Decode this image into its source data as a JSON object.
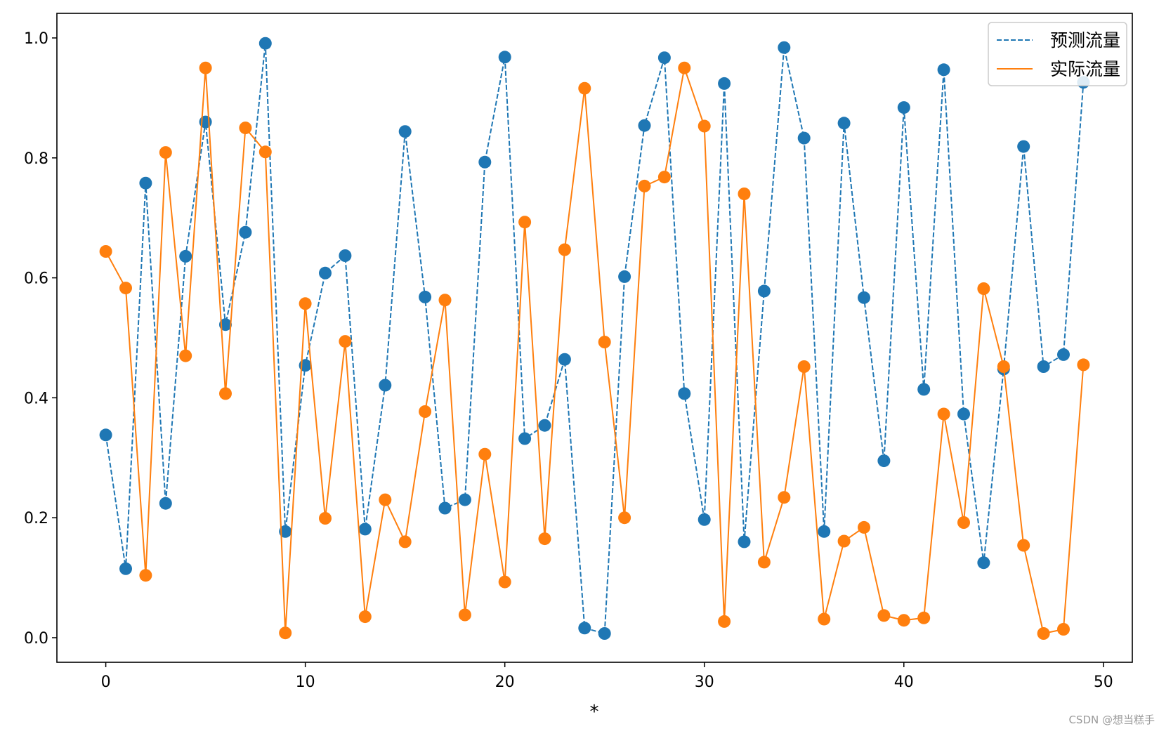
{
  "chart_data": {
    "type": "line",
    "xlabel": "*",
    "ylabel": "",
    "xlim": [
      -2.45,
      51.45
    ],
    "ylim": [
      -0.041,
      1.041
    ],
    "xticks": [
      0,
      10,
      20,
      30,
      40,
      50
    ],
    "yticks": [
      0.0,
      0.2,
      0.4,
      0.6,
      0.8,
      1.0
    ],
    "xtick_labels": [
      "0",
      "10",
      "20",
      "30",
      "40",
      "50"
    ],
    "ytick_labels": [
      "0.0",
      "0.2",
      "0.4",
      "0.6",
      "0.8",
      "1.0"
    ],
    "grid": false,
    "legend_position": "top-right",
    "x": [
      0,
      1,
      2,
      3,
      4,
      5,
      6,
      7,
      8,
      9,
      10,
      11,
      12,
      13,
      14,
      15,
      16,
      17,
      18,
      19,
      20,
      21,
      22,
      23,
      24,
      25,
      26,
      27,
      28,
      29,
      30,
      31,
      32,
      33,
      34,
      35,
      36,
      37,
      38,
      39,
      40,
      41,
      42,
      43,
      44,
      45,
      46,
      47,
      48,
      49
    ],
    "series": [
      {
        "name": "预测流量",
        "color": "#1f77b4",
        "line_style": "dashed",
        "values": [
          0.338,
          0.115,
          0.758,
          0.224,
          0.636,
          0.86,
          0.522,
          0.676,
          0.991,
          0.177,
          0.454,
          0.608,
          0.637,
          0.181,
          0.421,
          0.844,
          0.568,
          0.216,
          0.23,
          0.793,
          0.968,
          0.332,
          0.354,
          0.464,
          0.016,
          0.007,
          0.602,
          0.854,
          0.967,
          0.407,
          0.197,
          0.924,
          0.16,
          0.578,
          0.984,
          0.833,
          0.177,
          0.858,
          0.567,
          0.295,
          0.884,
          0.414,
          0.947,
          0.373,
          0.125,
          0.448,
          0.819,
          0.452,
          0.472,
          0.926
        ]
      },
      {
        "name": "实际流量",
        "color": "#ff7f0e",
        "line_style": "solid",
        "values": [
          0.644,
          0.583,
          0.104,
          0.809,
          0.47,
          0.95,
          0.407,
          0.85,
          0.81,
          0.008,
          0.557,
          0.199,
          0.494,
          0.035,
          0.23,
          0.16,
          0.377,
          0.563,
          0.038,
          0.306,
          0.093,
          0.693,
          0.165,
          0.647,
          0.916,
          0.493,
          0.2,
          0.753,
          0.768,
          0.95,
          0.853,
          0.027,
          0.74,
          0.126,
          0.234,
          0.452,
          0.031,
          0.161,
          0.184,
          0.037,
          0.029,
          0.033,
          0.373,
          0.192,
          0.582,
          0.452,
          0.154,
          0.007,
          0.014,
          0.455
        ]
      }
    ]
  },
  "watermark": "CSDN @想当糕手"
}
